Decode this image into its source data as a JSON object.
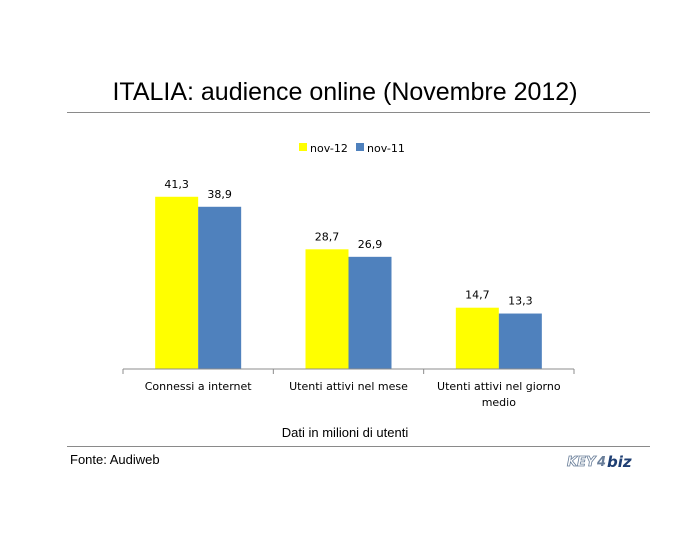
{
  "page": {
    "title": "ITALIA: audience online (Novembre 2012)",
    "caption": "Dati in milioni di utenti",
    "source": "Fonte: Audiweb",
    "logo_text": "KEY4biz"
  },
  "chart_data": {
    "type": "bar",
    "categories": [
      "Connessi a internet",
      "Utenti attivi nel mese",
      "Utenti attivi nel giorno medio"
    ],
    "category_lines": [
      [
        "Connessi a internet"
      ],
      [
        "Utenti attivi nel mese"
      ],
      [
        "Utenti attivi nel giorno",
        "medio"
      ]
    ],
    "series": [
      {
        "name": "nov-12",
        "color": "#ffff00",
        "values": [
          41.3,
          28.7,
          14.7
        ],
        "labels": [
          "41,3",
          "28,7",
          "14,7"
        ]
      },
      {
        "name": "nov-11",
        "color": "#4f81bd",
        "values": [
          38.9,
          26.9,
          13.3
        ],
        "labels": [
          "38,9",
          "26,9",
          "13,3"
        ]
      }
    ],
    "ylim": [
      0,
      47
    ],
    "legend_position": "top-center",
    "grid": false,
    "y_axis_visible": false
  }
}
